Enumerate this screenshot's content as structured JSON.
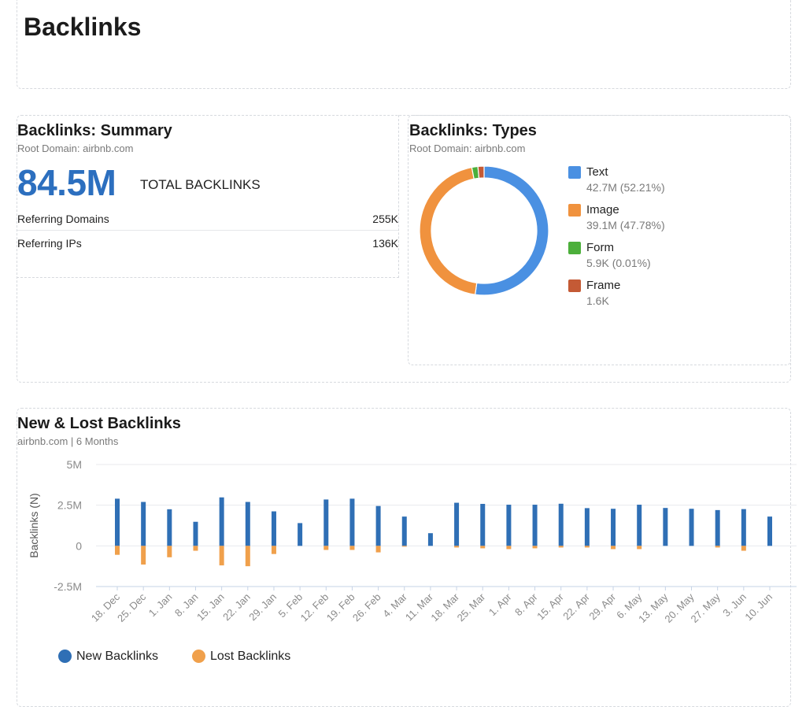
{
  "page": {
    "title": "Backlinks"
  },
  "summary": {
    "title": "Backlinks: Summary",
    "root_domain": "Root Domain: airbnb.com",
    "total_value": "84.5M",
    "total_label": "TOTAL BACKLINKS",
    "rows": [
      {
        "label": "Referring Domains",
        "value": "255K"
      },
      {
        "label": "Referring IPs",
        "value": "136K"
      }
    ]
  },
  "types": {
    "title": "Backlinks: Types",
    "root_domain": "Root Domain: airbnb.com",
    "items": [
      {
        "label": "Text",
        "value": "42.7M (52.21%)",
        "color": "#4a90e2"
      },
      {
        "label": "Image",
        "value": "39.1M (47.78%)",
        "color": "#f0923e"
      },
      {
        "label": "Form",
        "value": "5.9K (0.01%)",
        "color": "#4caf3b"
      },
      {
        "label": "Frame",
        "value": "1.6K",
        "color": "#c45a35"
      }
    ]
  },
  "new_lost": {
    "title": "New & Lost Backlinks",
    "subtitle": "airbnb.com | 6 Months",
    "legend": [
      {
        "label": "New Backlinks",
        "color": "#2f6fb5"
      },
      {
        "label": "Lost Backlinks",
        "color": "#f0a04b"
      }
    ]
  },
  "chart_data": [
    {
      "type": "pie",
      "categories": [
        "Text",
        "Image",
        "Form",
        "Frame"
      ],
      "values": [
        52.21,
        47.78,
        0.01,
        0.002
      ],
      "donut": true
    },
    {
      "type": "bar",
      "ylabel": "Backlinks (N)",
      "ylim": [
        -2500000,
        5000000
      ],
      "yticks": [
        "5M",
        "2.5M",
        "0",
        "-2.5M"
      ],
      "ytick_values": [
        5000000,
        2500000,
        0,
        -2500000
      ],
      "grid": true,
      "categories": [
        "18. Dec",
        "25. Dec",
        "1. Jan",
        "8. Jan",
        "15. Jan",
        "22. Jan",
        "29. Jan",
        "5. Feb",
        "12. Feb",
        "19. Feb",
        "26. Feb",
        "4. Mar",
        "11. Mar",
        "18. Mar",
        "25. Mar",
        "1. Apr",
        "8. Apr",
        "15. Apr",
        "22. Apr",
        "29. Apr",
        "6. May",
        "13. May",
        "20. May",
        "27. May",
        "3. Jun",
        "10. Jun"
      ],
      "series": [
        {
          "name": "New Backlinks",
          "color": "#2f6fb5",
          "values": [
            2900000,
            2700000,
            2250000,
            1480000,
            2980000,
            2700000,
            2120000,
            1400000,
            2850000,
            2900000,
            2450000,
            1800000,
            780000,
            2650000,
            2580000,
            2530000,
            2530000,
            2590000,
            2320000,
            2280000,
            2530000,
            2330000,
            2280000,
            2200000,
            2260000,
            1800000
          ]
        },
        {
          "name": "Lost Backlinks",
          "color": "#f0a04b",
          "values": [
            -550000,
            -1150000,
            -700000,
            -300000,
            -1200000,
            -1250000,
            -500000,
            0,
            -250000,
            -250000,
            -400000,
            -50000,
            0,
            -100000,
            -150000,
            -200000,
            -150000,
            -100000,
            -100000,
            -200000,
            -200000,
            0,
            0,
            -100000,
            -300000,
            0
          ]
        }
      ]
    }
  ]
}
